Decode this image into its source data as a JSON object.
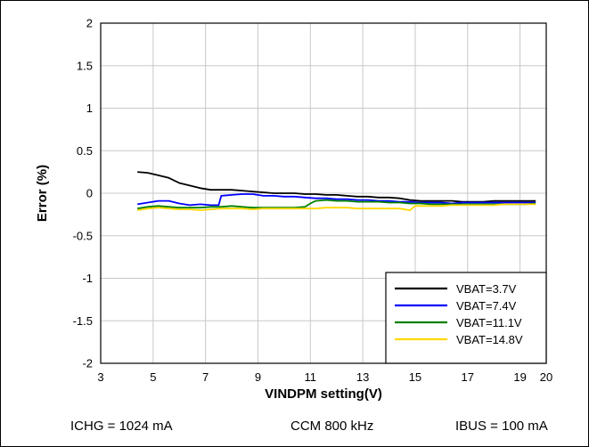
{
  "chart_data": {
    "type": "line",
    "title": "",
    "xlabel": "VINDPM setting(V)",
    "ylabel": "Error (%)",
    "xlim": [
      3,
      20
    ],
    "ylim": [
      -2,
      2
    ],
    "x_ticks": [
      3,
      5,
      7,
      9,
      11,
      13,
      15,
      17,
      19,
      20
    ],
    "y_ticks": [
      2,
      1.5,
      1,
      0.5,
      0,
      -0.5,
      -1,
      -1.5,
      -2
    ],
    "y_tick_labels": [
      "2",
      "1.5",
      "1",
      "0.5",
      "0",
      "-0.5",
      "-1",
      "-1.5",
      "-2"
    ],
    "grid": true,
    "legend_position": "bottom-right",
    "series": [
      {
        "name": "VBAT=3.7V",
        "color": "#000000",
        "x": [
          4.4,
          4.8,
          5.2,
          5.6,
          6.0,
          6.4,
          6.8,
          7.2,
          7.6,
          8.0,
          8.4,
          8.8,
          9.2,
          9.6,
          10.0,
          10.4,
          10.8,
          11.2,
          11.6,
          12.0,
          12.4,
          12.8,
          13.2,
          13.6,
          14.0,
          14.4,
          14.8,
          15.2,
          15.6,
          16.0,
          16.4,
          16.8,
          17.2,
          17.6,
          18.0,
          18.4,
          18.8,
          19.2,
          19.6
        ],
        "y": [
          0.25,
          0.24,
          0.21,
          0.18,
          0.12,
          0.09,
          0.06,
          0.04,
          0.04,
          0.04,
          0.03,
          0.02,
          0.01,
          0.0,
          0.0,
          0.0,
          -0.01,
          -0.01,
          -0.02,
          -0.02,
          -0.03,
          -0.04,
          -0.04,
          -0.05,
          -0.05,
          -0.06,
          -0.08,
          -0.09,
          -0.09,
          -0.09,
          -0.09,
          -0.1,
          -0.1,
          -0.1,
          -0.09,
          -0.09,
          -0.09,
          -0.09,
          -0.09
        ]
      },
      {
        "name": "VBAT=7.4V",
        "color": "#0000ff",
        "x": [
          4.4,
          4.8,
          5.2,
          5.6,
          6.0,
          6.4,
          6.8,
          7.2,
          7.5,
          7.6,
          8.0,
          8.4,
          8.8,
          9.2,
          9.6,
          10.0,
          10.4,
          10.8,
          11.2,
          11.6,
          12.0,
          12.4,
          12.8,
          13.2,
          13.6,
          14.0,
          14.4,
          14.8,
          15.2,
          15.6,
          16.0,
          16.4,
          16.8,
          17.2,
          17.6,
          18.0,
          18.4,
          18.8,
          19.2,
          19.6
        ],
        "y": [
          -0.13,
          -0.11,
          -0.09,
          -0.09,
          -0.12,
          -0.14,
          -0.13,
          -0.14,
          -0.14,
          -0.03,
          -0.02,
          -0.01,
          -0.01,
          -0.03,
          -0.03,
          -0.04,
          -0.04,
          -0.05,
          -0.06,
          -0.06,
          -0.07,
          -0.07,
          -0.08,
          -0.08,
          -0.09,
          -0.09,
          -0.1,
          -0.1,
          -0.11,
          -0.11,
          -0.11,
          -0.12,
          -0.11,
          -0.11,
          -0.11,
          -0.11,
          -0.11,
          -0.11,
          -0.11,
          -0.11
        ]
      },
      {
        "name": "VBAT=11.1V",
        "color": "#008000",
        "x": [
          4.4,
          4.8,
          5.2,
          5.6,
          6.0,
          6.4,
          6.8,
          7.2,
          7.6,
          8.0,
          8.4,
          8.8,
          9.2,
          9.6,
          10.0,
          10.4,
          10.8,
          11.0,
          11.2,
          11.6,
          12.0,
          12.4,
          12.8,
          13.2,
          13.6,
          14.0,
          14.4,
          14.8,
          15.2,
          15.6,
          16.0,
          16.4,
          16.8,
          17.2,
          17.6,
          18.0,
          18.4,
          18.8,
          19.2,
          19.6
        ],
        "y": [
          -0.18,
          -0.16,
          -0.15,
          -0.16,
          -0.17,
          -0.17,
          -0.17,
          -0.16,
          -0.16,
          -0.15,
          -0.16,
          -0.17,
          -0.17,
          -0.17,
          -0.17,
          -0.17,
          -0.16,
          -0.12,
          -0.09,
          -0.08,
          -0.09,
          -0.09,
          -0.1,
          -0.1,
          -0.1,
          -0.11,
          -0.11,
          -0.12,
          -0.12,
          -0.13,
          -0.13,
          -0.13,
          -0.13,
          -0.13,
          -0.13,
          -0.13,
          -0.13,
          -0.13,
          -0.13,
          -0.12
        ]
      },
      {
        "name": "VBAT=14.8V",
        "color": "#ffd700",
        "x": [
          4.4,
          4.8,
          5.2,
          5.6,
          6.0,
          6.4,
          6.8,
          7.2,
          7.6,
          8.0,
          8.4,
          8.8,
          9.2,
          9.6,
          10.0,
          10.4,
          10.8,
          11.2,
          11.6,
          12.0,
          12.4,
          12.8,
          13.2,
          13.6,
          14.0,
          14.4,
          14.8,
          15.0,
          15.2,
          15.6,
          16.0,
          16.4,
          16.8,
          17.2,
          17.6,
          18.0,
          18.4,
          18.8,
          19.2,
          19.6
        ],
        "y": [
          -0.2,
          -0.18,
          -0.17,
          -0.18,
          -0.19,
          -0.19,
          -0.2,
          -0.19,
          -0.18,
          -0.18,
          -0.18,
          -0.19,
          -0.18,
          -0.18,
          -0.18,
          -0.18,
          -0.18,
          -0.18,
          -0.17,
          -0.17,
          -0.17,
          -0.18,
          -0.18,
          -0.18,
          -0.18,
          -0.18,
          -0.2,
          -0.15,
          -0.15,
          -0.15,
          -0.15,
          -0.14,
          -0.14,
          -0.14,
          -0.14,
          -0.14,
          -0.13,
          -0.13,
          -0.13,
          -0.13
        ]
      }
    ]
  },
  "footer": {
    "ichg": "ICHG = 1024 mA",
    "ccm": "CCM 800 kHz",
    "ibus": "IBUS = 100 mA"
  }
}
